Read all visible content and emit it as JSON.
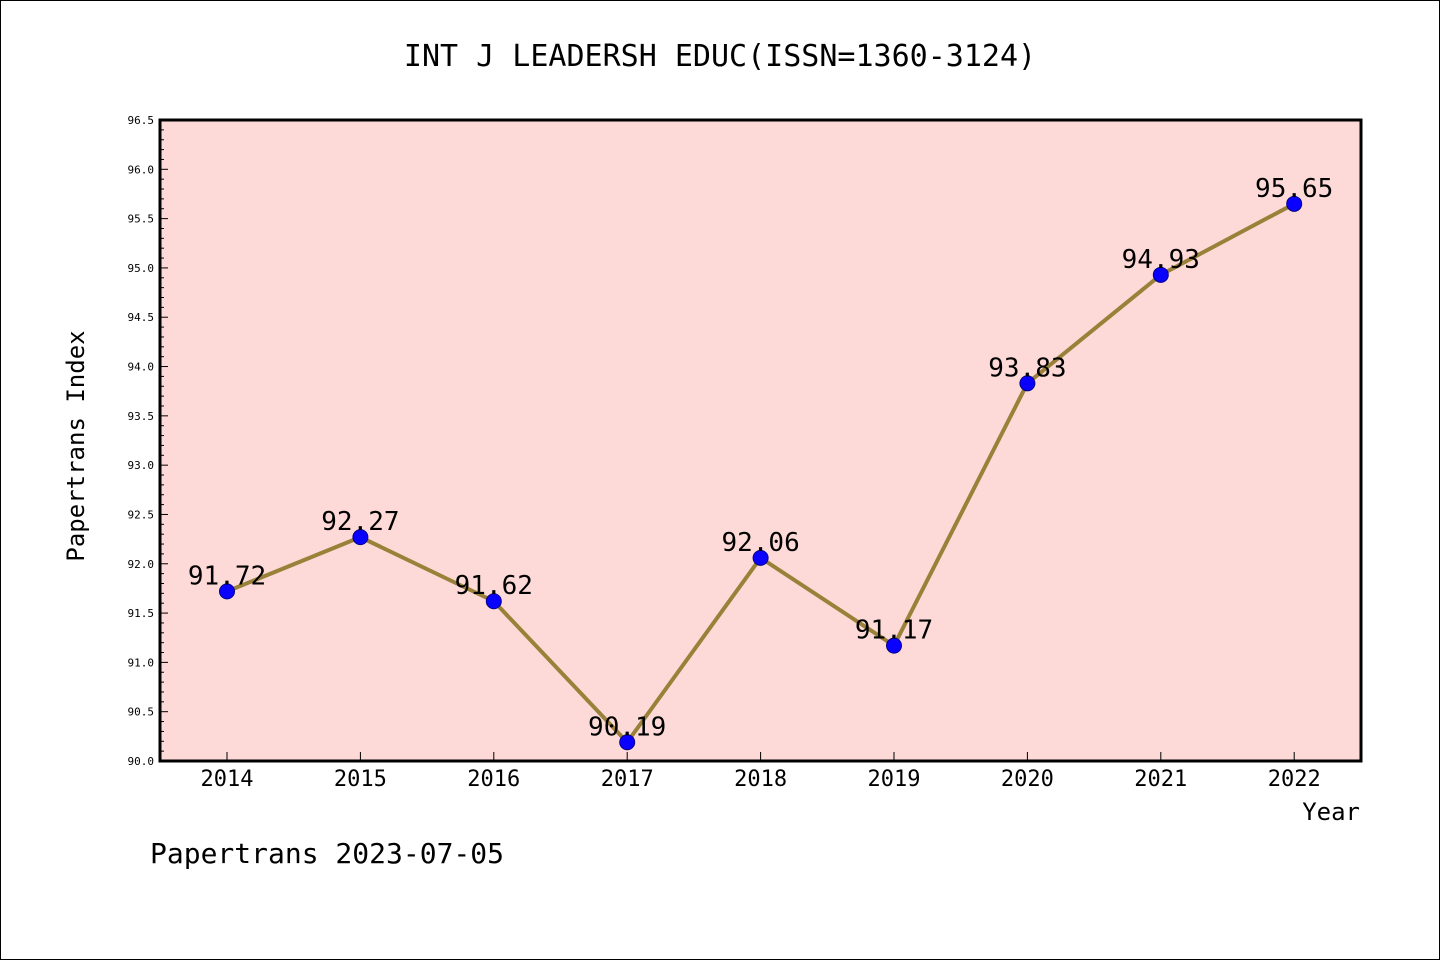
{
  "chart_data": {
    "type": "line",
    "title": "INT J LEADERSH EDUC(ISSN=1360-3124)",
    "xlabel": "Year",
    "ylabel": "Papertrans Index",
    "categories": [
      "2014",
      "2015",
      "2016",
      "2017",
      "2018",
      "2019",
      "2020",
      "2021",
      "2022"
    ],
    "series": [
      {
        "values": [
          91.72,
          92.27,
          91.62,
          90.19,
          92.06,
          91.17,
          93.83,
          94.93,
          95.65
        ]
      }
    ],
    "data_labels": [
      "91.72",
      "92.27",
      "91.62",
      "90.19",
      "92.06",
      "91.17",
      "93.83",
      "94.93",
      "95.65"
    ],
    "ylim": [
      90.0,
      96.5
    ],
    "yticks": [
      "90.0",
      "90.5",
      "91.0",
      "91.5",
      "92.0",
      "92.5",
      "93.0",
      "93.5",
      "94.0",
      "94.5",
      "95.0",
      "95.5",
      "96.0",
      "96.5"
    ],
    "grid": false,
    "legend": "none",
    "colors": {
      "plot_background": "#fddad7",
      "line": "#9a8139",
      "marker": "#0a00ff"
    }
  },
  "footer": "Papertrans 2023-07-05"
}
